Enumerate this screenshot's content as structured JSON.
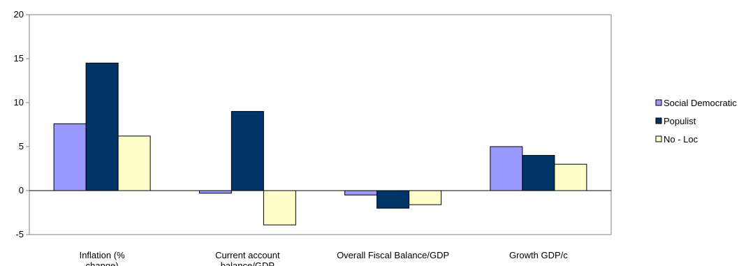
{
  "chart_data": {
    "type": "bar",
    "categories": [
      "Inflation (% change)",
      "Current account balance/GDP",
      "Overall Fiscal Balance/GDP",
      "Growth GDP/c"
    ],
    "series": [
      {
        "name": "Social Democratic",
        "values": [
          7.6,
          -0.3,
          -0.5,
          5.0
        ],
        "color": "#9999ff"
      },
      {
        "name": "Populist",
        "values": [
          14.5,
          9.0,
          -2.0,
          4.0
        ],
        "color": "#003366"
      },
      {
        "name": "No - Loc",
        "values": [
          6.2,
          -3.9,
          -1.6,
          3.0
        ],
        "color": "#ffffcc"
      }
    ],
    "ylim": [
      -5,
      20
    ],
    "yticks": [
      -5,
      0,
      5,
      10,
      15,
      20
    ],
    "grid": false,
    "legend_position": "right"
  }
}
